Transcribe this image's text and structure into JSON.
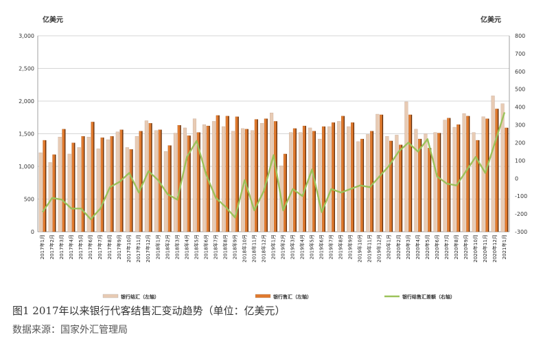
{
  "caption": "图1 2017年以来银行代客结售汇变动趋势（单位：亿美元）",
  "source": "数据来源：国家外汇管理局",
  "chart_data": {
    "type": "bar+line",
    "y_left_unit": "亿美元",
    "y_right_unit": "亿美元",
    "y_left_ticks": [
      "0",
      "500",
      "1,000",
      "1,500",
      "2,000",
      "2,500",
      "3,000"
    ],
    "y_right_ticks": [
      "-300",
      "-200",
      "-100",
      "0",
      "100",
      "200",
      "300",
      "400",
      "500",
      "600",
      "700",
      "800"
    ],
    "ylim_left": [
      0,
      3000
    ],
    "ylim_right": [
      -300,
      800
    ],
    "categories": [
      "2017年1月",
      "2017年2月",
      "2017年3月",
      "2017年4月",
      "2017年5月",
      "2017年6月",
      "2017年7月",
      "2017年8月",
      "2017年9月",
      "2017年10月",
      "2017年11月",
      "2017年12月",
      "2018年1月",
      "2018年2月",
      "2018年3月",
      "2018年4月",
      "2018年5月",
      "2018年6月",
      "2018年7月",
      "2018年8月",
      "2018年9月",
      "2018年10月",
      "2018年11月",
      "2018年12月",
      "2019年1月",
      "2019年2月",
      "2019年3月",
      "2019年4月",
      "2019年5月",
      "2019年6月",
      "2019年7月",
      "2019年8月",
      "2019年9月",
      "2019年10月",
      "2019年11月",
      "2019年12月",
      "2020年1月",
      "2020年2月",
      "2020年3月",
      "2020年4月",
      "2020年5月",
      "2020年6月",
      "2020年7月",
      "2020年8月",
      "2020年9月",
      "2020年10月",
      "2020年11月",
      "2020年12月",
      "2021年1月"
    ],
    "series": [
      {
        "name": "银行结汇（左轴）",
        "axis": "left",
        "color": "#e8cbb4",
        "values": [
          1210,
          1060,
          1450,
          1190,
          1290,
          1450,
          1270,
          1410,
          1530,
          1290,
          1460,
          1700,
          1550,
          1230,
          1510,
          1590,
          1730,
          1640,
          1690,
          1610,
          1540,
          1580,
          1550,
          1660,
          1820,
          1010,
          1520,
          1520,
          1590,
          1420,
          1610,
          1690,
          1610,
          1380,
          1490,
          1800,
          1460,
          1480,
          1990,
          1570,
          1500,
          1520,
          1710,
          1600,
          1810,
          1520,
          1760,
          2080,
          1960
        ]
      },
      {
        "name": "银行售汇（左轴）",
        "axis": "left",
        "color": "#e07a2e",
        "values": [
          1400,
          1180,
          1570,
          1360,
          1460,
          1680,
          1440,
          1460,
          1560,
          1260,
          1540,
          1660,
          1560,
          1320,
          1630,
          1470,
          1520,
          1620,
          1780,
          1770,
          1760,
          1570,
          1720,
          1730,
          1690,
          1190,
          1580,
          1620,
          1540,
          1610,
          1670,
          1770,
          1670,
          1420,
          1540,
          1790,
          1390,
          1330,
          1790,
          1420,
          1280,
          1510,
          1740,
          1640,
          1770,
          1400,
          1730,
          1880,
          1590
        ]
      },
      {
        "name": "银行结售汇差额（右轴）",
        "axis": "right",
        "type": "line",
        "color": "#9bc25a",
        "values": [
          -190,
          -110,
          -120,
          -170,
          -170,
          -230,
          -170,
          -50,
          -20,
          30,
          -80,
          40,
          -10,
          -90,
          -120,
          120,
          210,
          20,
          -110,
          -160,
          -220,
          -10,
          -180,
          -70,
          130,
          -180,
          -60,
          -100,
          50,
          -190,
          -60,
          -80,
          -60,
          -40,
          -50,
          10,
          70,
          150,
          200,
          150,
          220,
          10,
          -30,
          -40,
          40,
          120,
          30,
          200,
          370
        ]
      }
    ],
    "legend": "bottom"
  }
}
